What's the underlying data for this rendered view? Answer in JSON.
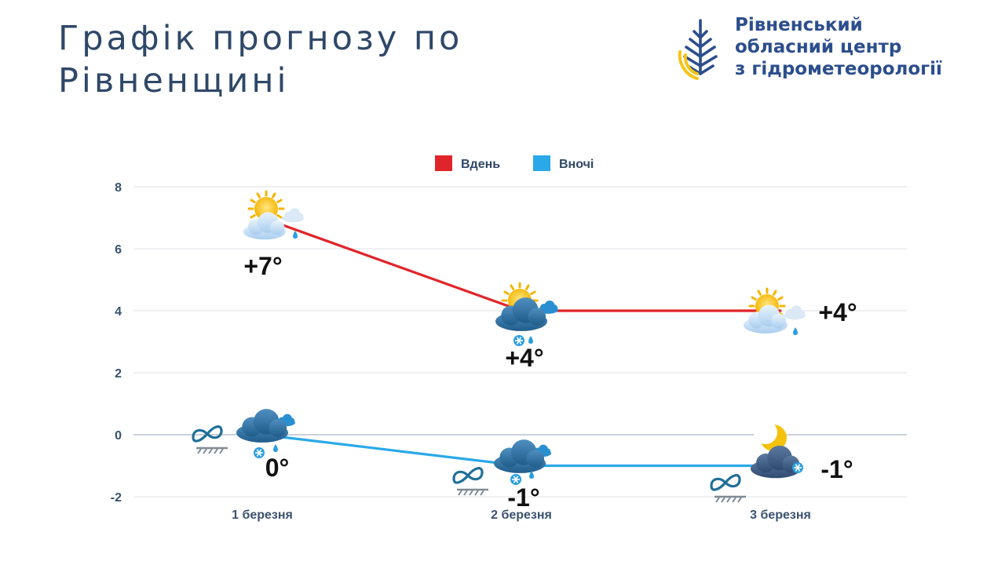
{
  "header": {
    "title_line1": "Графік прогнозу по",
    "title_line2": "Рівненщині"
  },
  "logo": {
    "line1": "Рівненський",
    "line2": "обласний центр",
    "line3": "з гідрометеорології",
    "icon": "drop-leaf-logo-icon"
  },
  "colors": {
    "day": "#e0252a",
    "night": "#2aa8e8",
    "title": "#2f4868",
    "logo_text": "#2c4e8c",
    "logo_blue": "#2c4e8c",
    "logo_yellow": "#f5c518"
  },
  "chart_data": {
    "type": "line",
    "categories": [
      "1 березня",
      "2 березня",
      "3 березня"
    ],
    "yticks": [
      "8",
      "6",
      "4",
      "2",
      "0",
      "-2"
    ],
    "ylim": [
      -2,
      8
    ],
    "grid": true,
    "legend_position": "top-center",
    "series": [
      {
        "name": "Вдень",
        "color": "#e0252a",
        "values": [
          7,
          4,
          4
        ],
        "labels": [
          "+7°",
          "+4°",
          "+4°"
        ],
        "icons": [
          "sun-cloud-rain-icon",
          "sun-cloud-snow-rain-icon",
          "sun-cloud-rain-icon"
        ]
      },
      {
        "name": "Вночі",
        "color": "#2aa8e8",
        "values": [
          0,
          -1,
          -1
        ],
        "labels": [
          "0°",
          "-1°",
          "-1°"
        ],
        "icons": [
          "cloud-snow-rain-icon",
          "cloud-snow-rain-icon",
          "moon-cloud-snow-icon"
        ],
        "extra_icons": [
          "fog-icon",
          "fog-icon",
          "fog-icon"
        ]
      }
    ]
  }
}
